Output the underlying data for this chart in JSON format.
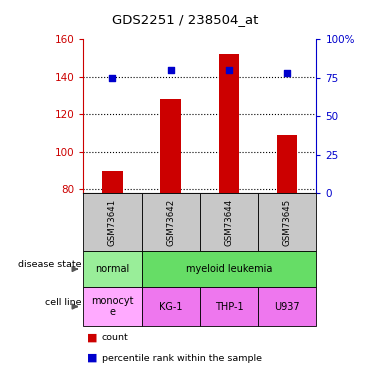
{
  "title": "GDS2251 / 238504_at",
  "samples": [
    "GSM73641",
    "GSM73642",
    "GSM73644",
    "GSM73645"
  ],
  "counts": [
    90,
    128,
    152,
    109
  ],
  "percentiles": [
    75,
    80,
    80,
    78
  ],
  "ylim_left": [
    78,
    160
  ],
  "ylim_right": [
    0,
    100
  ],
  "yticks_left": [
    80,
    100,
    120,
    140,
    160
  ],
  "yticks_right": [
    0,
    25,
    50,
    75,
    100
  ],
  "ytick_labels_right": [
    "0",
    "25",
    "50",
    "75",
    "100%"
  ],
  "bar_color": "#cc0000",
  "dot_color": "#0000cc",
  "bar_width": 0.35,
  "disease_groups": [
    {
      "label": "normal",
      "span": [
        0,
        1
      ],
      "color": "#99ee99"
    },
    {
      "label": "myeloid leukemia",
      "span": [
        1,
        4
      ],
      "color": "#66dd66"
    }
  ],
  "cell_line": [
    "monocyte",
    "KG-1",
    "THP-1",
    "U937"
  ],
  "cell_line_colors": [
    "#ffaaff",
    "#ee77ee",
    "#ee77ee",
    "#ee77ee"
  ],
  "left_axis_color": "#cc0000",
  "right_axis_color": "#0000cc",
  "bg_color": "#ffffff",
  "gray_color": "#c8c8c8"
}
